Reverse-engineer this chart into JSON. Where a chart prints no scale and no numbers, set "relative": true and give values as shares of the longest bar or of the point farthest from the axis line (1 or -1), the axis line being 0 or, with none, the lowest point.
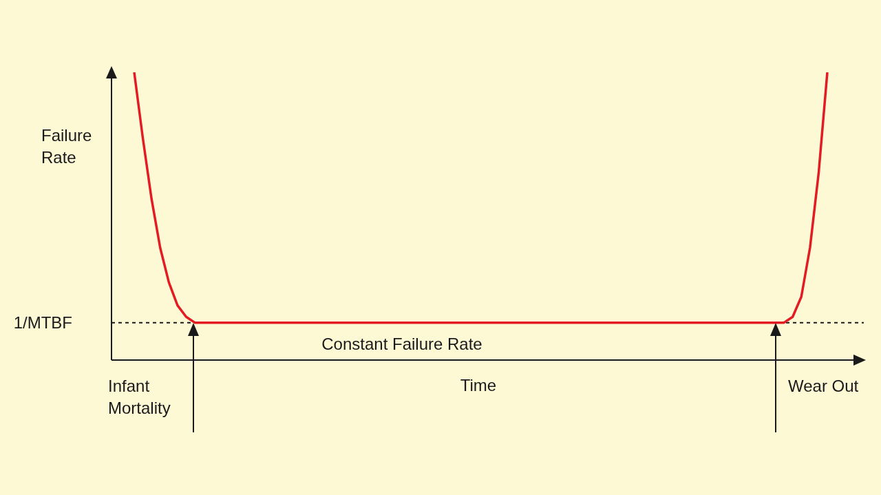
{
  "chart_data": {
    "type": "line",
    "relative": true,
    "title": null,
    "xlabel": "Time",
    "ylabel": "Failure Rate",
    "categories": [
      null,
      null,
      null,
      null,
      null,
      null,
      null,
      null,
      null,
      null,
      null,
      null,
      null,
      null,
      null,
      null,
      null,
      null,
      null,
      null,
      null,
      null,
      null,
      null,
      null,
      null,
      null,
      null,
      null,
      null,
      null,
      null,
      null,
      null,
      null,
      null,
      null,
      null,
      null,
      null,
      null,
      null,
      null,
      null,
      null,
      null,
      null,
      null,
      null,
      null,
      null,
      null,
      null,
      null,
      null,
      null,
      null,
      null,
      null,
      null,
      null,
      null,
      null,
      null,
      null,
      null,
      null,
      null,
      null,
      null,
      null,
      null,
      null,
      null,
      null,
      null,
      null,
      null,
      null,
      null,
      null
    ],
    "series": [
      {
        "color": "#e31b23",
        "values": [
          1,
          0.77,
          0.56,
          0.39,
          0.27,
          0.19,
          0.15,
          0.13,
          0.13,
          0.13,
          0.13,
          0.13,
          0.13,
          0.13,
          0.13,
          0.13,
          0.13,
          0.13,
          0.13,
          0.13,
          0.13,
          0.13,
          0.13,
          0.13,
          0.13,
          0.13,
          0.13,
          0.13,
          0.13,
          0.13,
          0.13,
          0.13,
          0.13,
          0.13,
          0.13,
          0.13,
          0.13,
          0.13,
          0.13,
          0.13,
          0.13,
          0.13,
          0.13,
          0.13,
          0.13,
          0.13,
          0.13,
          0.13,
          0.13,
          0.13,
          0.13,
          0.13,
          0.13,
          0.13,
          0.13,
          0.13,
          0.13,
          0.13,
          0.13,
          0.13,
          0.13,
          0.13,
          0.13,
          0.13,
          0.13,
          0.13,
          0.13,
          0.13,
          0.13,
          0.13,
          0.13,
          0.13,
          0.13,
          0.13,
          0.13,
          0.13,
          0.15,
          0.22,
          0.39,
          0.65,
          1
        ]
      }
    ],
    "ref_lines": [
      {
        "axis": "y",
        "value": 0.13,
        "label": "1/MTBF",
        "line_style": "dashed",
        "color": "#1a1a1a"
      }
    ],
    "annotations": [
      "Constant Failure Rate",
      "Infant Mortality",
      "Wear Out"
    ]
  }
}
